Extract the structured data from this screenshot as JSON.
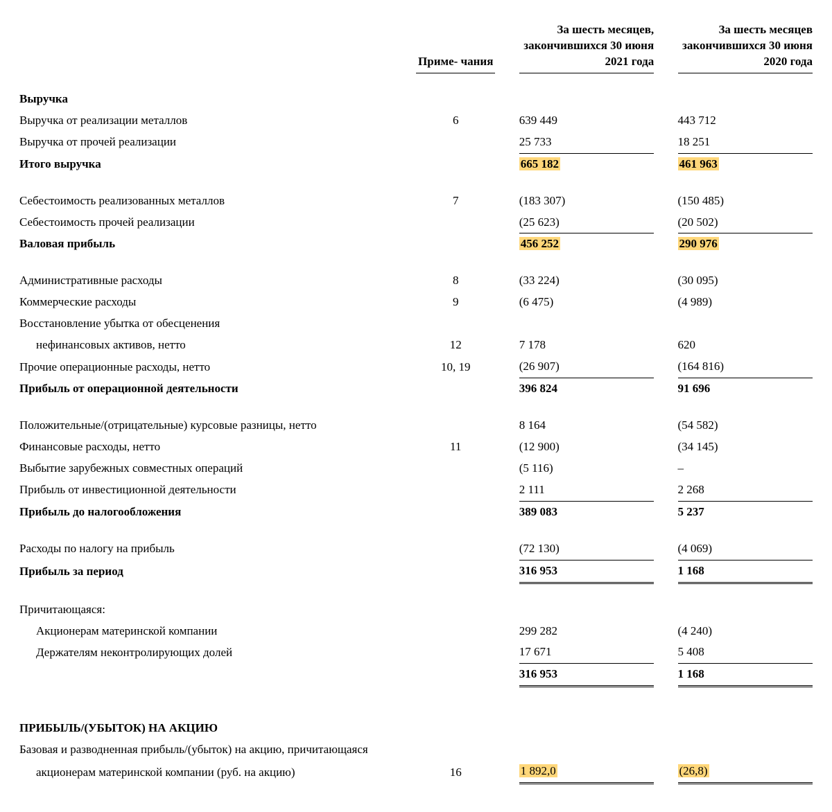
{
  "colors": {
    "highlight": "#ffd77a",
    "text": "#000000",
    "bg": "#ffffff",
    "rule": "#000000"
  },
  "typography": {
    "font_family": "Times New Roman",
    "base_size_pt": 13,
    "bold_weight": 700
  },
  "table": {
    "type": "table",
    "columns": {
      "note": "Приме-\nчания",
      "period1": "За шесть месяцев, закончившихся 30 июня 2021 года",
      "period2": "За шесть месяцев закончившихся 30 июня 2020 года"
    }
  },
  "sections": {
    "revenue_header": "Выручка",
    "revenue_metals": {
      "label": "Выручка от реализации металлов",
      "note": "6",
      "v1": "639 449",
      "v2": "443 712"
    },
    "revenue_other": {
      "label": "Выручка от прочей реализации",
      "note": "",
      "v1": "25 733",
      "v2": "18 251"
    },
    "revenue_total": {
      "label": "Итого выручка",
      "v1": "665 182",
      "v2": "461 963"
    },
    "cogs_metals": {
      "label": "Себестоимость реализованных металлов",
      "note": "7",
      "v1": "(183 307)",
      "v2": "(150 485)"
    },
    "cogs_other": {
      "label": "Себестоимость прочей реализации",
      "v1": "(25 623)",
      "v2": "(20 502)"
    },
    "gross_profit": {
      "label": "Валовая прибыль",
      "v1": "456 252",
      "v2": "290 976"
    },
    "admin": {
      "label": "Административные расходы",
      "note": "8",
      "v1": "(33 224)",
      "v2": "(30 095)"
    },
    "commercial": {
      "label": "Коммерческие расходы",
      "note": "9",
      "v1": "(6 475)",
      "v2": "(4 989)"
    },
    "impairment_l1": "Восстановление убытка от обесценения",
    "impairment": {
      "label": "нефинансовых активов, нетто",
      "note": "12",
      "v1": "7 178",
      "v2": "620"
    },
    "other_opex": {
      "label": "Прочие операционные расходы, нетто",
      "note": "10, 19",
      "v1": "(26 907)",
      "v2": "(164 816)"
    },
    "op_profit": {
      "label": "Прибыль от операционной деятельности",
      "v1": "396 824",
      "v2": "91 696"
    },
    "fx": {
      "label": "Положительные/(отрицательные) курсовые разницы, нетто",
      "v1": "8 164",
      "v2": "(54 582)"
    },
    "fin_cost": {
      "label": "Финансовые расходы, нетто",
      "note": "11",
      "v1": "(12 900)",
      "v2": "(34 145)"
    },
    "disposal": {
      "label": "Выбытие зарубежных совместных операций",
      "v1": "(5 116)",
      "v2": "–"
    },
    "inv_income": {
      "label": "Прибыль от инвестиционной деятельности",
      "v1": "2 111",
      "v2": "2 268"
    },
    "pbt": {
      "label": "Прибыль до налогообложения",
      "v1": "389 083",
      "v2": "5 237"
    },
    "tax": {
      "label": "Расходы по налогу на прибыль",
      "v1": "(72 130)",
      "v2": "(4 069)"
    },
    "net": {
      "label": "Прибыль за период",
      "v1": "316 953",
      "v2": "1 168"
    },
    "attrib_header": "Причитающаяся:",
    "attrib_parent": {
      "label": "Акционерам материнской компании",
      "v1": "299 282",
      "v2": "(4 240)"
    },
    "attrib_nci": {
      "label": "Держателям неконтролирующих долей",
      "v1": "17 671",
      "v2": "5 408"
    },
    "attrib_total": {
      "v1": "316 953",
      "v2": "1 168"
    },
    "eps_header": "ПРИБЫЛЬ/(УБЫТОК) НА АКЦИЮ",
    "eps_l1": "Базовая и разводненная прибыль/(убыток) на акцию, причитающаяся",
    "eps": {
      "label": "акционерам материнской компании (руб. на акцию)",
      "note": "16",
      "v1": "1 892,0",
      "v2": "(26,8)"
    }
  }
}
